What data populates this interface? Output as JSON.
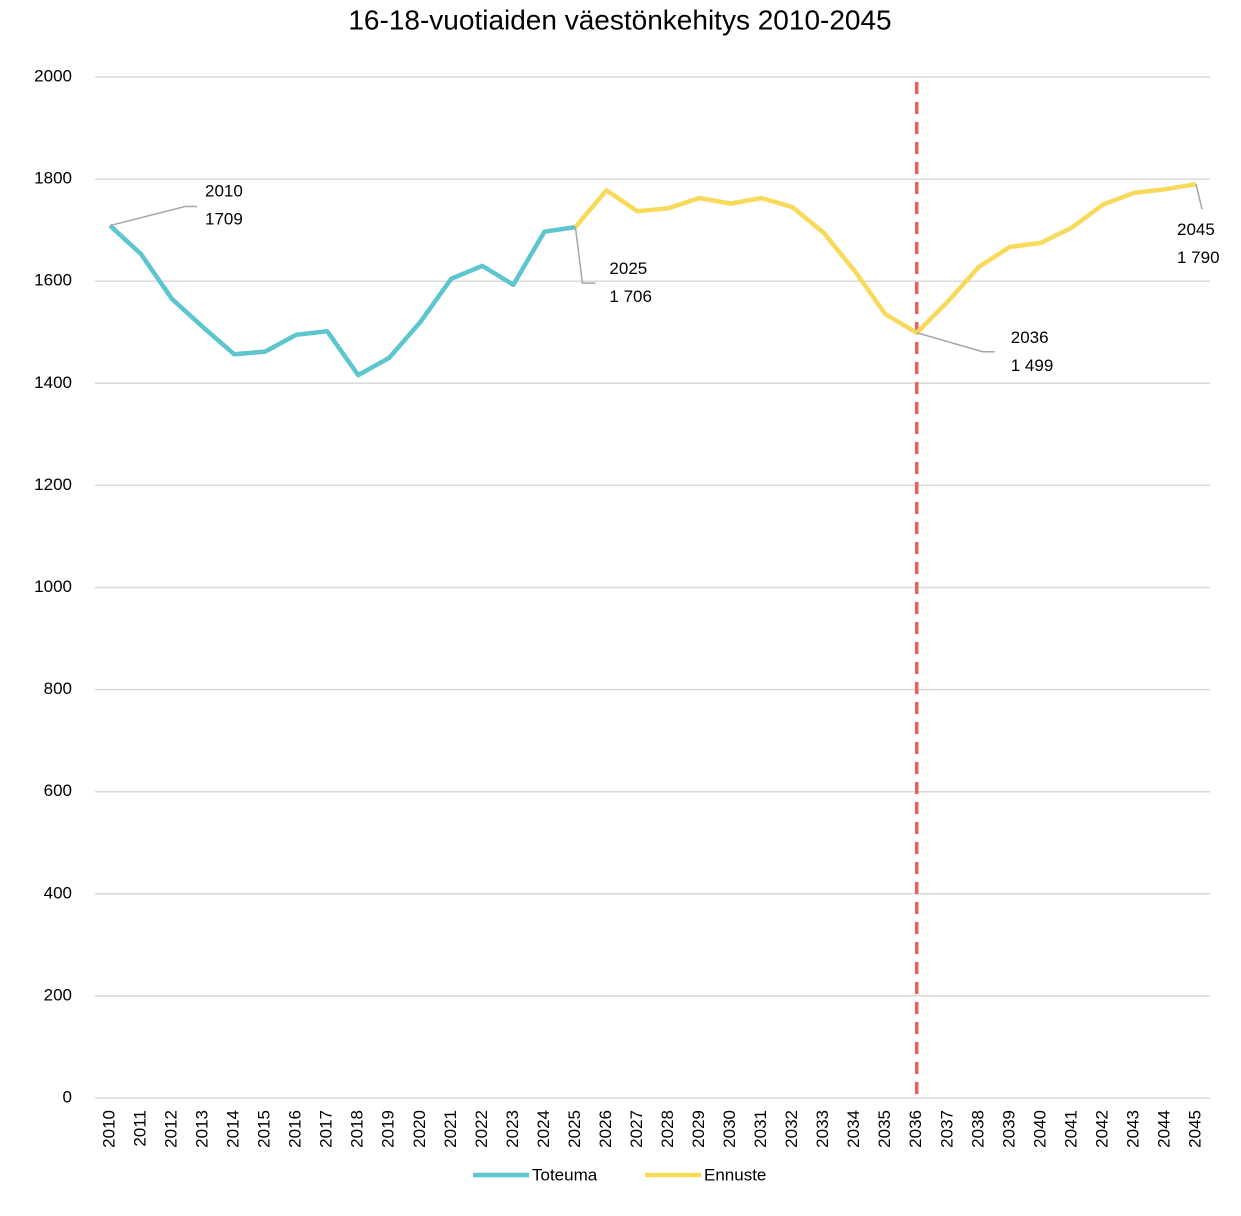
{
  "chart_data": {
    "type": "line",
    "title": "16-18-vuotiaiden väestönkehitys 2010-2045",
    "categories": [
      "2010",
      "2011",
      "2012",
      "2013",
      "2014",
      "2015",
      "2016",
      "2017",
      "2018",
      "2019",
      "2020",
      "2021",
      "2022",
      "2023",
      "2024",
      "2025",
      "2026",
      "2027",
      "2028",
      "2029",
      "2030",
      "2031",
      "2032",
      "2033",
      "2034",
      "2035",
      "2036",
      "2037",
      "2038",
      "2039",
      "2040",
      "2041",
      "2042",
      "2043",
      "2044",
      "2045"
    ],
    "series": [
      {
        "name": "Toteuma",
        "color": "#5bc5d0",
        "values": [
          1709,
          1653,
          1565,
          1510,
          1457,
          1462,
          1495,
          1502,
          1416,
          1450,
          1520,
          1605,
          1630,
          1593,
          1697,
          1706,
          null,
          null,
          null,
          null,
          null,
          null,
          null,
          null,
          null,
          null,
          null,
          null,
          null,
          null,
          null,
          null,
          null,
          null,
          null,
          null
        ],
        "value_labels": [
          "1709",
          null,
          null,
          null,
          null,
          null,
          null,
          null,
          null,
          null,
          null,
          null,
          null,
          null,
          null,
          null,
          null,
          null,
          null,
          null,
          null,
          null,
          null,
          null,
          null,
          null,
          null,
          null,
          null,
          null,
          null,
          null,
          null,
          null,
          null,
          null
        ]
      },
      {
        "name": "Ennuste",
        "color": "#f9d95a",
        "values": [
          null,
          null,
          null,
          null,
          null,
          null,
          null,
          null,
          null,
          null,
          null,
          null,
          null,
          null,
          null,
          1706,
          1778,
          1737,
          1743,
          1763,
          1752,
          1763,
          1745,
          1695,
          1620,
          1535,
          1499,
          1560,
          1628,
          1667,
          1675,
          1705,
          1750,
          1773,
          1780,
          1790
        ],
        "value_labels": [
          null,
          null,
          null,
          null,
          null,
          null,
          null,
          null,
          null,
          null,
          null,
          null,
          null,
          null,
          null,
          "1 706",
          null,
          null,
          null,
          null,
          null,
          null,
          null,
          null,
          null,
          null,
          "1 499",
          null,
          null,
          null,
          null,
          null,
          null,
          null,
          null,
          "1 790"
        ]
      }
    ],
    "ylim": [
      0,
      2000
    ],
    "yticks": [
      0,
      200,
      400,
      600,
      800,
      1000,
      1200,
      1400,
      1600,
      1800,
      2000
    ],
    "grid": true,
    "legend": "bottom",
    "vline": {
      "at": "2036",
      "color": "#e8615a"
    }
  }
}
